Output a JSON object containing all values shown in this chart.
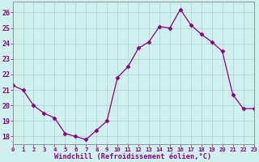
{
  "x": [
    0,
    1,
    2,
    3,
    4,
    5,
    6,
    7,
    8,
    9,
    10,
    11,
    12,
    13,
    14,
    15,
    16,
    17,
    18,
    19,
    20,
    21,
    22,
    23
  ],
  "y": [
    21.3,
    21.0,
    20.0,
    19.5,
    19.2,
    18.2,
    18.0,
    17.8,
    18.4,
    19.0,
    21.8,
    22.5,
    23.7,
    24.1,
    25.1,
    25.0,
    26.2,
    25.2,
    24.6,
    24.1,
    23.5,
    20.7,
    19.8,
    19.8
  ],
  "xlim": [
    0,
    23
  ],
  "ylim": [
    17.5,
    26.7
  ],
  "yticks": [
    18,
    19,
    20,
    21,
    22,
    23,
    24,
    25,
    26
  ],
  "xtick_labels": [
    "0",
    "1",
    "2",
    "3",
    "4",
    "5",
    "6",
    "7",
    "8",
    "9",
    "10",
    "11",
    "12",
    "13",
    "14",
    "15",
    "16",
    "17",
    "18",
    "19",
    "20",
    "21",
    "22",
    "23"
  ],
  "xlabel": "Windchill (Refroidissement éolien,°C)",
  "line_color": "#880088",
  "marker": "D",
  "marker_size": 2.5,
  "bg_color": "#cff0ee",
  "grid_color": "#b0d8d4",
  "title": ""
}
